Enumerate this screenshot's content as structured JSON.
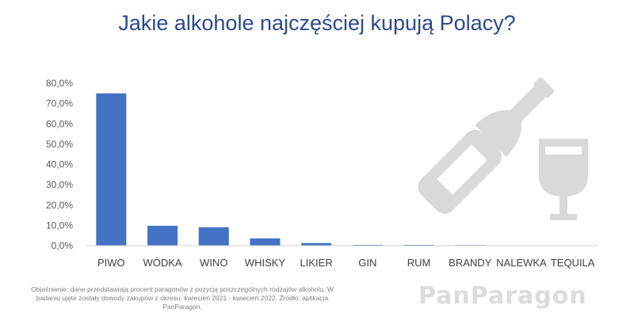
{
  "title": "Jakie alkohole najczęściej kupują Polacy?",
  "chart_data": {
    "type": "bar",
    "categories": [
      "PIWO",
      "WÓDKA",
      "WINO",
      "WHISKY",
      "LIKIER",
      "GIN",
      "RUM",
      "BRANDY",
      "NALEWKA",
      "TEQUILA"
    ],
    "values": [
      75.0,
      9.8,
      9.1,
      3.6,
      1.3,
      0.4,
      0.4,
      0.3,
      0.0,
      0.0
    ],
    "ylim": [
      0,
      80
    ],
    "yticks": [
      "0,0%",
      "10,0%",
      "20,0%",
      "30,0%",
      "40,0%",
      "50,0%",
      "60,0%",
      "70,0%",
      "80,0%"
    ],
    "xlabel": "",
    "ylabel": "",
    "grid": false,
    "bar_color": "#4472c4"
  },
  "note": "Objaśnienie: dane przedstawiają procent paragonów z pozycją poszczególnych rodzajów alkoholu. W badaniu ujęte zostały dowody zakupów z okresu: kwiecień 2021 - kwiecień 2022. Źródło: aplikacja PanParagon.",
  "brand": "PanParagon",
  "colors": {
    "title": "#2b4a8c",
    "bars": "#4472c4",
    "icons": "#d9d9d9"
  },
  "icons": [
    "bottle-icon",
    "wine-glass-icon"
  ]
}
